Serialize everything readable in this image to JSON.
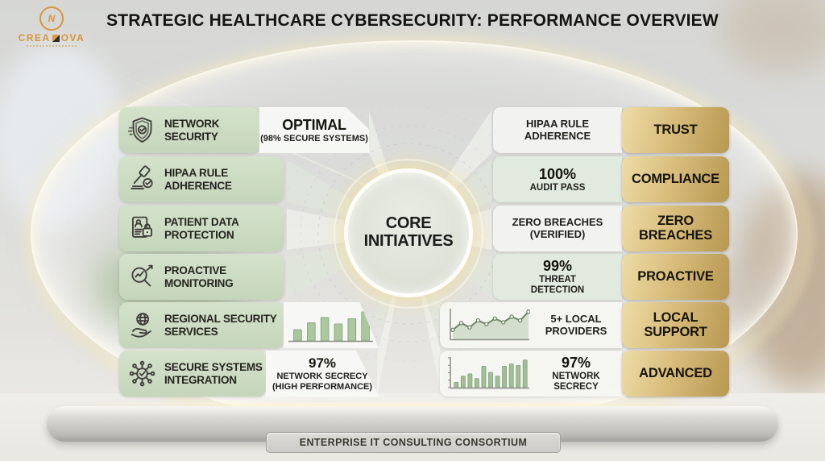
{
  "colors": {
    "gold_accent": "#c9ab64",
    "sage_green": "#cbdbc2",
    "chart_green": "#a3c297",
    "glow_gold": "#f1e2b4",
    "logo_orange": "#d6953f"
  },
  "header": {
    "title": "STRATEGIC HEALTHCARE CYBERSECURITY: PERFORMANCE OVERVIEW"
  },
  "logo": {
    "monogram": "N",
    "brand_left": "CREA",
    "brand_right": "OVA"
  },
  "hub": {
    "label": "CORE\nINITIATIVES"
  },
  "left_rows": [
    {
      "icon": "shield-check-icon",
      "label": "NETWORK\nSECURITY",
      "value_title": "OPTIMAL",
      "value_sub": "(98% SECURE SYSTEMS)"
    },
    {
      "icon": "gavel-check-icon",
      "label": "HIPAA RULE\nADHERENCE"
    },
    {
      "icon": "patient-record-lock-icon",
      "label": "PATIENT DATA\nPROTECTION"
    },
    {
      "icon": "magnifier-trend-icon",
      "label": "PROACTIVE\nMONITORING"
    },
    {
      "icon": "globe-hand-icon",
      "label": "REGIONAL SECURITY\nSERVICES",
      "chart": {
        "type": "bar",
        "values": [
          28,
          45,
          58,
          42,
          55,
          72
        ],
        "color": "#a6c599",
        "axis": false
      }
    },
    {
      "icon": "network-hub-check-icon",
      "label": "SECURE SYSTEMS\nINTEGRATION",
      "value_title": "97%",
      "value_sub": "NETWORK SECRECY\n(HIGH PERFORMANCE)"
    }
  ],
  "right_rows": [
    {
      "metric": "HIPAA RULE\nADHERENCE",
      "tag": "TRUST"
    },
    {
      "metric_big": "100%",
      "metric": "AUDIT PASS",
      "tag": "COMPLIANCE"
    },
    {
      "metric": "ZERO BREACHES\n(VERIFIED)",
      "tag": "ZERO\nBREACHES"
    },
    {
      "metric_big": "99%",
      "metric": "THREAT\nDETECTION",
      "tag": "PROACTIVE"
    },
    {
      "metric": "5+ LOCAL\nPROVIDERS",
      "tag": "LOCAL\nSUPPORT",
      "chart": {
        "type": "line",
        "values": [
          30,
          52,
          38,
          60,
          48,
          66,
          54,
          72,
          60,
          88
        ],
        "color": "#95b28c",
        "axis": true
      }
    },
    {
      "metric_big": "97%",
      "metric": "NETWORK\nSECRECY",
      "tag": "ADVANCED",
      "chart": {
        "type": "bar",
        "values": [
          14,
          30,
          36,
          24,
          56,
          40,
          30,
          56,
          62,
          58,
          72
        ],
        "color": "#9dbd92",
        "axis": true
      }
    }
  ],
  "footer": {
    "label": "ENTERPRISE IT CONSULTING CONSORTIUM"
  }
}
